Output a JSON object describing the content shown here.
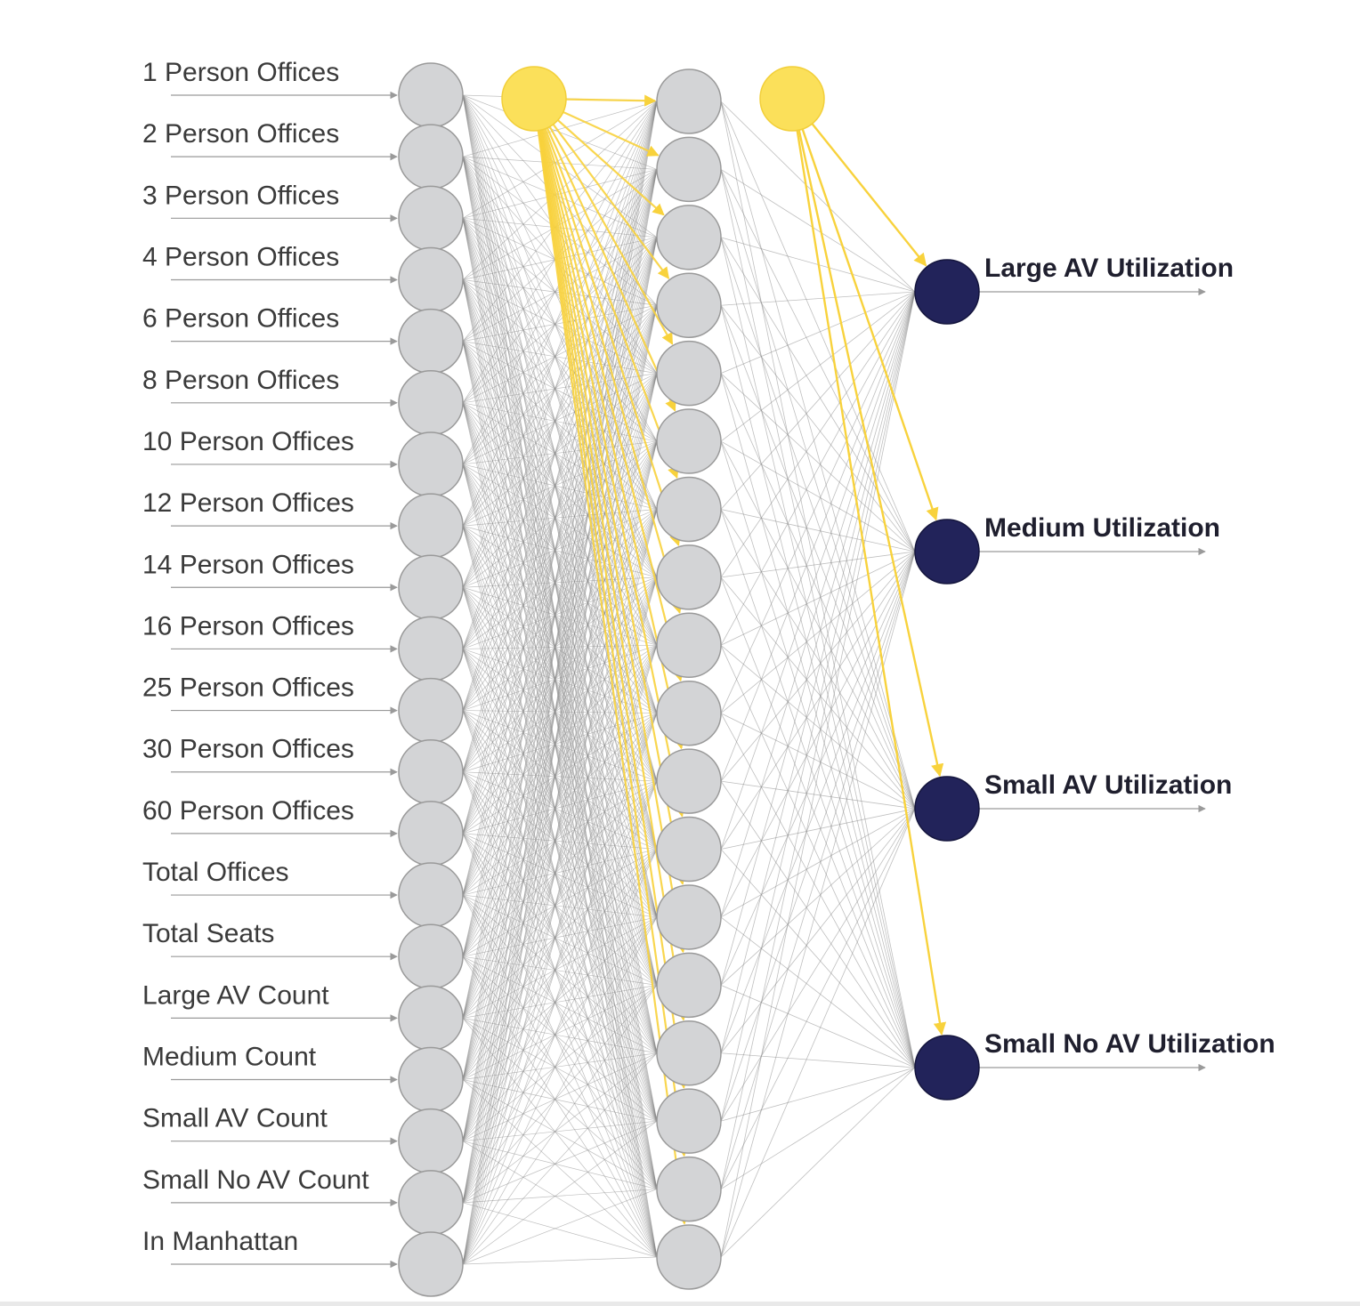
{
  "input_labels": [
    "1 Person Offices",
    "2 Person Offices",
    "3 Person Offices",
    "4 Person Offices",
    "6 Person Offices",
    "8 Person Offices",
    "10 Person Offices",
    "12 Person Offices",
    "14 Person Offices",
    "16 Person Offices",
    "25 Person Offices",
    "30 Person Offices",
    "60 Person Offices",
    "Total Offices",
    "Total Seats",
    "Large AV Count",
    "Medium Count",
    "Small AV Count",
    "Small No AV Count",
    "In Manhattan"
  ],
  "hidden_neuron_count": 18,
  "output_labels": [
    "Large AV Utilization",
    "Medium Utilization",
    "Small AV Utilization",
    "Small No AV Utilization"
  ],
  "colors": {
    "neuron_fill": "#d3d4d6",
    "neuron_stroke": "#9a9a9a",
    "bias_fill": "#fbe05a",
    "bias_stroke": "#f2cf3a",
    "bias_edge": "#f8d23c",
    "output_fill": "#22235a",
    "edge": "#8a8a8a",
    "arrow": "#9a9a9a"
  }
}
